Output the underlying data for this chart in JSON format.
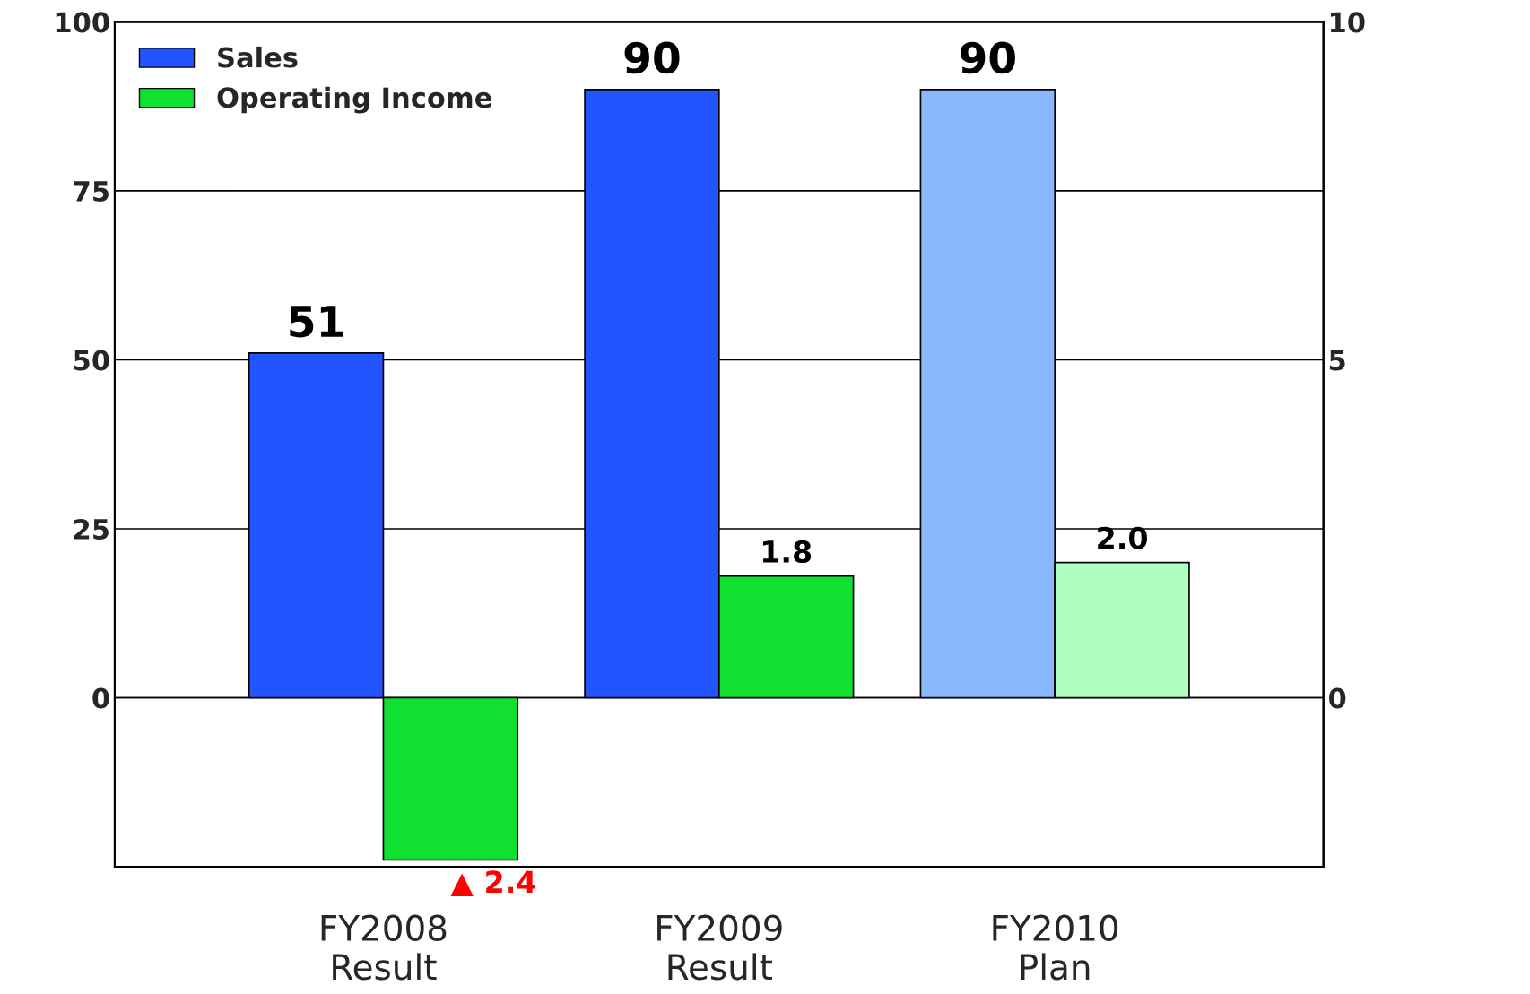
{
  "chart_data": {
    "type": "bar",
    "categories": [
      "FY2008\nResult",
      "FY2009\nResult",
      "FY2010\nPlan"
    ],
    "series": [
      {
        "name": "Sales",
        "color": "#2255ff",
        "colors": [
          "#2255ff",
          "#2255ff",
          "#8ab8ff"
        ],
        "values": [
          51,
          90,
          90
        ],
        "value_labels": [
          "51",
          "90",
          "90"
        ]
      },
      {
        "name": "Operating Income",
        "color": "#10e030",
        "colors": [
          "#10e030",
          "#10e030",
          "#b0ffc0"
        ],
        "values": [
          -2.4,
          1.8,
          2.0
        ],
        "axis": "y2",
        "value_labels": [
          null,
          "1.8",
          "2.0"
        ]
      }
    ],
    "ylim": [
      -25,
      100
    ],
    "yticks": [
      0,
      25,
      50,
      75,
      100
    ],
    "y2lim": [
      -2.5,
      10
    ],
    "y2ticks": [
      0,
      5,
      10
    ],
    "annotations": [
      "▲ 2.4"
    ],
    "grid": "y",
    "legend": "top left"
  }
}
